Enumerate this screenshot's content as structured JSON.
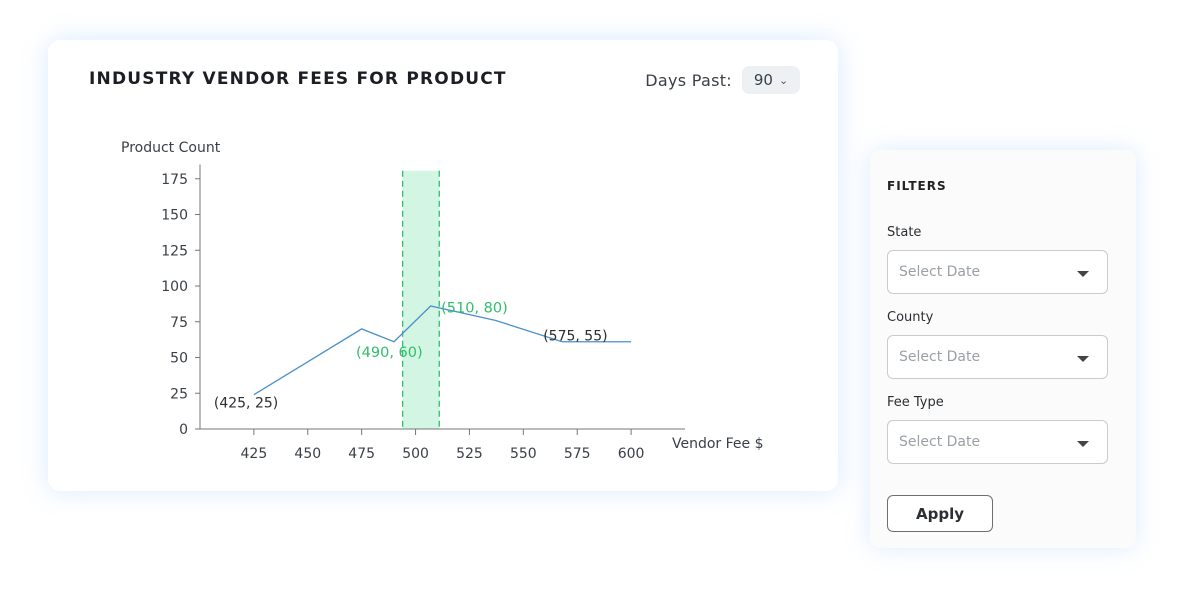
{
  "header": {
    "title": "INDUSTRY VENDOR FEES FOR PRODUCT",
    "days_label": "Days Past:",
    "days_value": "90"
  },
  "filters": {
    "title": "FILTERS",
    "state_label": "State",
    "state_placeholder": "Select Date",
    "county_label": "County",
    "county_placeholder": "Select Date",
    "fee_type_label": "Fee Type",
    "fee_type_placeholder": "Select Date",
    "apply_label": "Apply"
  },
  "colors": {
    "line": "#4a90c8",
    "highlight_fill": "#d3f5e3",
    "highlight_edge": "#2fbf6a",
    "highlight_text": "#2fbf6a",
    "axis": "#777777"
  },
  "chart_data": {
    "type": "line",
    "title": "INDUSTRY VENDOR FEES FOR PRODUCT",
    "xlabel": "Vendor Fee $",
    "ylabel": "Product Count",
    "xlim": [
      400,
      625
    ],
    "ylim": [
      0,
      185
    ],
    "x_ticks": [
      425,
      450,
      475,
      500,
      525,
      550,
      575,
      600
    ],
    "y_ticks": [
      0,
      25,
      50,
      75,
      100,
      125,
      150,
      175
    ],
    "series": [
      {
        "x": [
          425,
          450,
          475,
          490,
          507,
          537,
          568,
          600
        ],
        "y": [
          24,
          47,
          70,
          61,
          86,
          76,
          61,
          61
        ]
      }
    ],
    "highlight_range": [
      494,
      511
    ],
    "annotations": [
      {
        "text": "(425, 25)",
        "x": 425,
        "y": 25,
        "highlight": false
      },
      {
        "text": "(490, 60)",
        "x": 490,
        "y": 60,
        "highlight": true
      },
      {
        "text": "(510, 80)",
        "x": 510,
        "y": 80,
        "highlight": true
      },
      {
        "text": "(575, 55)",
        "x": 575,
        "y": 55,
        "highlight": false
      }
    ],
    "grid": false,
    "legend": "none"
  }
}
